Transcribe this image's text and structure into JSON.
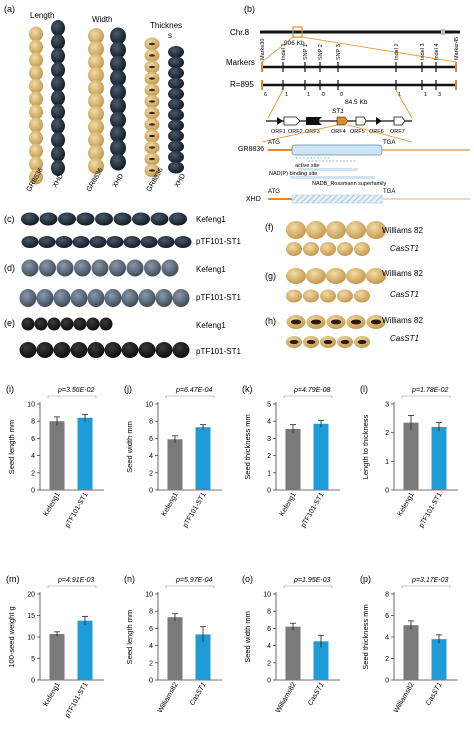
{
  "panel_labels": {
    "a": "(a)",
    "b": "(b)",
    "c": "(c)",
    "d": "(d)",
    "e": "(e)",
    "f": "(f)",
    "g": "(g)",
    "h": "(h)"
  },
  "panel_a": {
    "headers": [
      "Length",
      "Width",
      "Thicknes",
      "s"
    ],
    "genotypes": [
      "GR8836",
      "XHD"
    ],
    "colors": {
      "gr": "#c9a35c",
      "xhd": "#1e2a36"
    }
  },
  "panel_b": {
    "chr": "Chr.8",
    "chr_size": "906 Kb",
    "markers_label": "Markers",
    "markers": [
      "Marke30",
      "Indel 1",
      "SNP 1",
      "SNP 2",
      "SNP 3",
      "Indel 2",
      "Indel 3",
      "Indel 4",
      "Marker45"
    ],
    "r_label": "R=895",
    "counts": [
      "6",
      "1",
      "1",
      "0",
      "0",
      "1",
      "1",
      "3"
    ],
    "interval": "84.5 Kb",
    "st1_label": "ST1",
    "orfs": [
      "ORF1",
      "ORF2",
      "ORF3",
      "ORF4",
      "ORF5",
      "ORF6",
      "ORF7"
    ],
    "gr_label": "GR8836",
    "xhd_label": "XHD",
    "atg": "ATG",
    "tga": "TGA",
    "domains": [
      "active site",
      "NAD(P) binding site",
      "NADB_Rossmann superfamily"
    ]
  },
  "photo_rows": {
    "c": [
      "Kefeng1",
      "pTF101-ST1"
    ],
    "d": [
      "Kefeng1",
      "pTF101-ST1"
    ],
    "e": [
      "Kefeng1",
      "pTF101-ST1"
    ],
    "f": [
      "Williams 82",
      "CasST1"
    ],
    "g": [
      "Williams 82",
      "CasST1"
    ],
    "h": [
      "Williams 82",
      "CasST1"
    ]
  },
  "colors": {
    "grey": "#7a7a7a",
    "blue": "#1f9bd6"
  },
  "chart_data": [
    {
      "panel": "(i)",
      "type": "bar",
      "p": "p=3.56E-02",
      "ylabel": "Seed length mm",
      "categories": [
        "Kefeng1",
        "pTF101-ST1"
      ],
      "values": [
        8.0,
        8.4
      ],
      "errors": [
        0.5,
        0.4
      ],
      "ylim": [
        0,
        10
      ],
      "yticks": [
        0,
        2,
        4,
        6,
        8,
        10
      ]
    },
    {
      "panel": "(j)",
      "type": "bar",
      "p": "p=6.47E-04",
      "ylabel": "Seed width mm",
      "categories": [
        "Kefeng1",
        "pTF101-ST1"
      ],
      "values": [
        5.9,
        7.3
      ],
      "errors": [
        0.4,
        0.3
      ],
      "ylim": [
        0,
        10
      ],
      "yticks": [
        0,
        2,
        4,
        6,
        8,
        10
      ]
    },
    {
      "panel": "(k)",
      "type": "bar",
      "p": "p=4.79E-08",
      "ylabel": "Seed thickness mm",
      "categories": [
        "Kefeng1",
        "pTF101-ST1"
      ],
      "values": [
        3.55,
        3.85
      ],
      "errors": [
        0.25,
        0.2
      ],
      "ylim": [
        0,
        5
      ],
      "yticks": [
        0,
        1,
        2,
        3,
        4,
        5
      ]
    },
    {
      "panel": "(l)",
      "type": "bar",
      "p": "p=1.78E-02",
      "ylabel": "Length to thickness",
      "categories": [
        "Kefeng1",
        "pTF101-ST1"
      ],
      "values": [
        2.35,
        2.2
      ],
      "errors": [
        0.25,
        0.15
      ],
      "ylim": [
        0,
        3
      ],
      "yticks": [
        0,
        1,
        2,
        3
      ]
    },
    {
      "panel": "(m)",
      "type": "bar",
      "p": "p=4.91E-03",
      "ylabel": "100-seed weight g",
      "categories": [
        "Kefeng1",
        "pTF101-ST1"
      ],
      "values": [
        10.7,
        13.8
      ],
      "errors": [
        0.5,
        1.0
      ],
      "ylim": [
        0,
        20
      ],
      "yticks": [
        0,
        5,
        10,
        15,
        20
      ]
    },
    {
      "panel": "(n)",
      "type": "bar",
      "p": "p=5.97E-04",
      "ylabel": "Seed length mm",
      "categories": [
        "Williams82",
        "CasST1"
      ],
      "values": [
        7.3,
        5.3
      ],
      "errors": [
        0.4,
        0.9
      ],
      "ylim": [
        0,
        10
      ],
      "yticks": [
        0,
        2,
        4,
        6,
        8,
        10
      ]
    },
    {
      "panel": "(o)",
      "type": "bar",
      "p": "p=1.95E-03",
      "ylabel": "Seed width mm",
      "categories": [
        "Williams82",
        "CasST1"
      ],
      "values": [
        6.2,
        4.5
      ],
      "errors": [
        0.4,
        0.7
      ],
      "ylim": [
        0,
        10
      ],
      "yticks": [
        0,
        2,
        4,
        6,
        8,
        10
      ]
    },
    {
      "panel": "(p)",
      "type": "bar",
      "p": "p=3.17E-03",
      "ylabel": "Seed thickness mm",
      "categories": [
        "Williams82",
        "CasST1"
      ],
      "values": [
        5.1,
        3.8
      ],
      "errors": [
        0.4,
        0.4
      ],
      "ylim": [
        0,
        8
      ],
      "yticks": [
        0,
        2,
        4,
        6,
        8
      ]
    }
  ]
}
